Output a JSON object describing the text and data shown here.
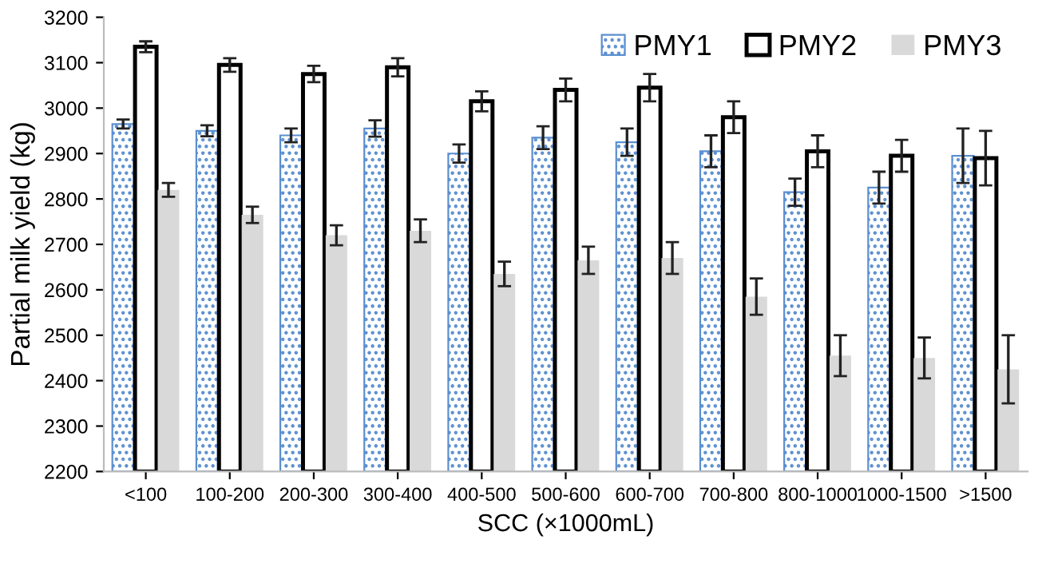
{
  "chart_data": {
    "type": "bar",
    "xlabel": "SCC (×1000mL)",
    "ylabel": "Partial milk yield (kg)",
    "categories": [
      "<100",
      "100-200",
      "200-300",
      "300-400",
      "400-500",
      "500-600",
      "600-700",
      "700-800",
      "800-1000",
      "1000-1500",
      ">1500"
    ],
    "series": [
      {
        "name": "PMY1",
        "color": "#5b8fd0",
        "values": [
          2965,
          2950,
          2940,
          2955,
          2900,
          2935,
          2925,
          2905,
          2815,
          2825,
          2895
        ],
        "errors": [
          10,
          12,
          15,
          18,
          20,
          25,
          30,
          35,
          30,
          35,
          60
        ]
      },
      {
        "name": "PMY2",
        "color": "#000000",
        "values": [
          3135,
          3095,
          3075,
          3090,
          3015,
          3040,
          3045,
          2980,
          2905,
          2895,
          2890
        ],
        "errors": [
          12,
          15,
          18,
          20,
          22,
          25,
          30,
          35,
          35,
          35,
          60
        ]
      },
      {
        "name": "PMY3",
        "color": "#d9d9d9",
        "values": [
          2820,
          2765,
          2720,
          2730,
          2635,
          2665,
          2670,
          2585,
          2455,
          2450,
          2425
        ],
        "errors": [
          15,
          18,
          22,
          25,
          27,
          30,
          35,
          40,
          45,
          45,
          75
        ]
      }
    ],
    "ylim": [
      2200,
      3200
    ],
    "yticks": [
      2200,
      2300,
      2400,
      2500,
      2600,
      2700,
      2800,
      2900,
      3000,
      3100,
      3200
    ],
    "grid": false,
    "legend": "top right"
  }
}
